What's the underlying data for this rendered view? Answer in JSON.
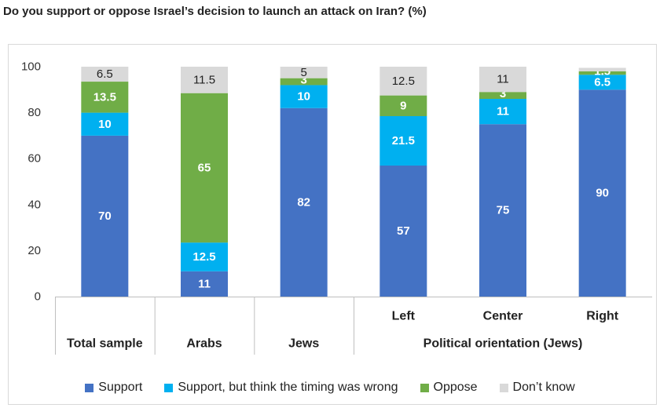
{
  "title": "Do you support or oppose Israel’s decision to launch an attack on Iran? (%)",
  "chart_data": {
    "type": "bar",
    "stacked": true,
    "categories": [
      "Total sample",
      "Arabs",
      "Jews",
      "Left",
      "Center",
      "Right"
    ],
    "category_groups": [
      {
        "label": "Total sample",
        "members": [
          "Total sample"
        ]
      },
      {
        "label": "Arabs",
        "members": [
          "Arabs"
        ]
      },
      {
        "label": "Jews",
        "members": [
          "Jews"
        ]
      },
      {
        "label": "Political orientation (Jews)",
        "members": [
          "Left",
          "Center",
          "Right"
        ]
      }
    ],
    "series": [
      {
        "name": "Support",
        "color": "#4472c4",
        "values": [
          70,
          11,
          82,
          57,
          75,
          90
        ],
        "labels": [
          "70",
          "11",
          "82",
          "57",
          "75",
          "90"
        ]
      },
      {
        "name": "Support, but think the timing was wrong",
        "color": "#00b0f0",
        "values": [
          10,
          12.5,
          10,
          21.5,
          11,
          6.5
        ],
        "labels": [
          "10",
          "12.5",
          "10",
          "21.5",
          "11",
          "6.5"
        ]
      },
      {
        "name": "Oppose",
        "color": "#70ad47",
        "values": [
          13.5,
          65,
          3,
          9,
          3,
          1.5
        ],
        "labels": [
          "13.5",
          "65",
          "3",
          "9",
          "3",
          "1.5"
        ]
      },
      {
        "name": "Don’t know",
        "color": "#d9d9d9",
        "values": [
          6.5,
          11.5,
          5,
          12.5,
          11,
          1.5
        ],
        "labels": [
          "6.5",
          "11.5",
          "5",
          "12.5",
          "11",
          ""
        ]
      }
    ],
    "ylim": [
      0,
      100
    ],
    "yticks": [
      "0",
      "20",
      "40",
      "60",
      "80",
      "100"
    ],
    "grid": false,
    "legend_position": "bottom"
  }
}
